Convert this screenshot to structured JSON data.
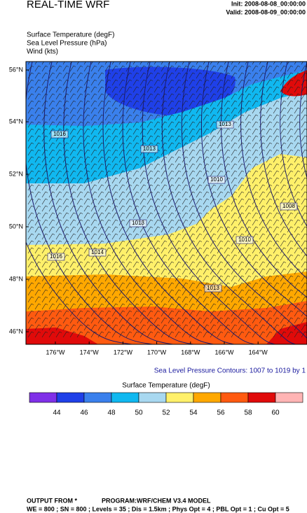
{
  "header": {
    "title": "REAL-TIME WRF",
    "init": "Init: 2008-08-08_00:00:00",
    "valid": "Valid: 2008-08-09_00:00:00"
  },
  "fields": [
    "Surface Temperature   (degF)",
    "Sea Level Pressure   (hPa)",
    "Wind   (kts)"
  ],
  "map": {
    "lat_labels": [
      "56°N",
      "54°N",
      "52°N",
      "50°N",
      "48°N",
      "46°N"
    ],
    "lon_labels": [
      "176°W",
      "174°W",
      "172°W",
      "170°W",
      "168°W",
      "166°W",
      "164°W"
    ],
    "contour_labels": [
      1016,
      1013,
      1013,
      1010,
      1008,
      1010,
      1013,
      1014,
      1016,
      1013
    ],
    "contour_note": "Sea Level Pressure Contours: 1007 to 1019 by 1"
  },
  "colorbar": {
    "title": "Surface Temperature  (degF)",
    "labels": [
      44,
      46,
      48,
      50,
      52,
      54,
      56,
      58,
      60
    ],
    "colors": [
      "#8030e8",
      "#1f40e8",
      "#3a80ec",
      "#10b8f0",
      "#a8d8f0",
      "#fff06a",
      "#ffa800",
      "#ff5a10",
      "#e00a0a",
      "#ffb4b4"
    ]
  },
  "footer": {
    "source": "OUTPUT FROM *",
    "program": "PROGRAM:WRF/CHEM V3.4 MODEL",
    "settings": "WE = 800 ; SN = 800 ; Levels = 35 ; Dis = 1.5km ; Phys Opt = 4 ; PBL Opt = 1 ; Cu Opt = 5"
  }
}
